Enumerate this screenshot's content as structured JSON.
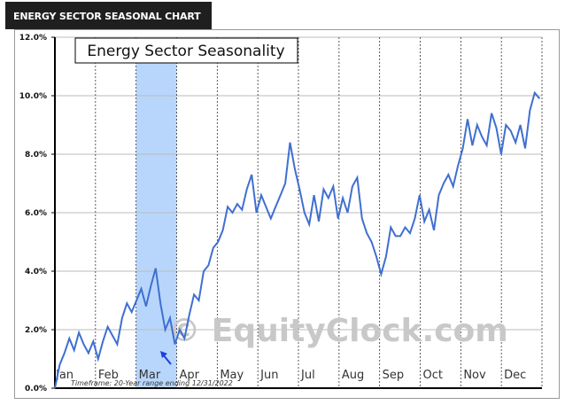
{
  "header": {
    "title": "ENERGY SECTOR SEASONAL CHART"
  },
  "chart_data": {
    "type": "line",
    "title": "Energy Sector Seasonality",
    "watermark": "© EquityClock.com",
    "footnote": "Timeframe: 20-Year range ending 12/31/2022",
    "xlabel": "",
    "ylabel": "",
    "x_range": [
      "Jan",
      "Dec"
    ],
    "ylim": [
      0,
      12
    ],
    "y_ticks": [
      "0.0%",
      "2.0%",
      "4.0%",
      "6.0%",
      "8.0%",
      "10.0%",
      "12.0%"
    ],
    "months": [
      "Jan",
      "Feb",
      "Mar",
      "Apr",
      "May",
      "Jun",
      "Jul",
      "Aug",
      "Sep",
      "Oct",
      "Nov",
      "Dec"
    ],
    "highlight": {
      "month": "Mar",
      "color": "#b8d6fb"
    },
    "grid": true,
    "line_color": "#3f6fd0",
    "series": [
      {
        "values": [
          0,
          0.8,
          1.2,
          1.7,
          1.3,
          1.9,
          1.5,
          1.2,
          1.6,
          1.0,
          1.6,
          2.1,
          1.8,
          1.5,
          2.4,
          2.9,
          2.6,
          3.0,
          3.4,
          2.8,
          3.5,
          4.1,
          2.9,
          2.0,
          2.4,
          1.5,
          2.0,
          1.7,
          2.5,
          3.2,
          3.0,
          4.0,
          4.2,
          4.8,
          5.0,
          5.4,
          6.2,
          6.0,
          6.3,
          6.1,
          6.8,
          7.3,
          6.0,
          6.6,
          6.2,
          5.8,
          6.2,
          6.6,
          7.0,
          8.4,
          7.5,
          6.8,
          6.0,
          5.6,
          6.6,
          5.7,
          6.8,
          6.5,
          6.9,
          5.8,
          6.5,
          6.0,
          6.9,
          7.2,
          5.8,
          5.3,
          5.0,
          4.5,
          3.9,
          4.5,
          5.5,
          5.2,
          5.2,
          5.5,
          5.3,
          5.8,
          6.6,
          5.7,
          6.1,
          5.4,
          6.6,
          7.0,
          7.3,
          6.9,
          7.6,
          8.2,
          9.2,
          8.3,
          9.0,
          8.6,
          8.3,
          9.4,
          8.9,
          8.0,
          9.0,
          8.8,
          8.4,
          9.0,
          8.2,
          9.5,
          10.1,
          9.9
        ]
      }
    ]
  }
}
